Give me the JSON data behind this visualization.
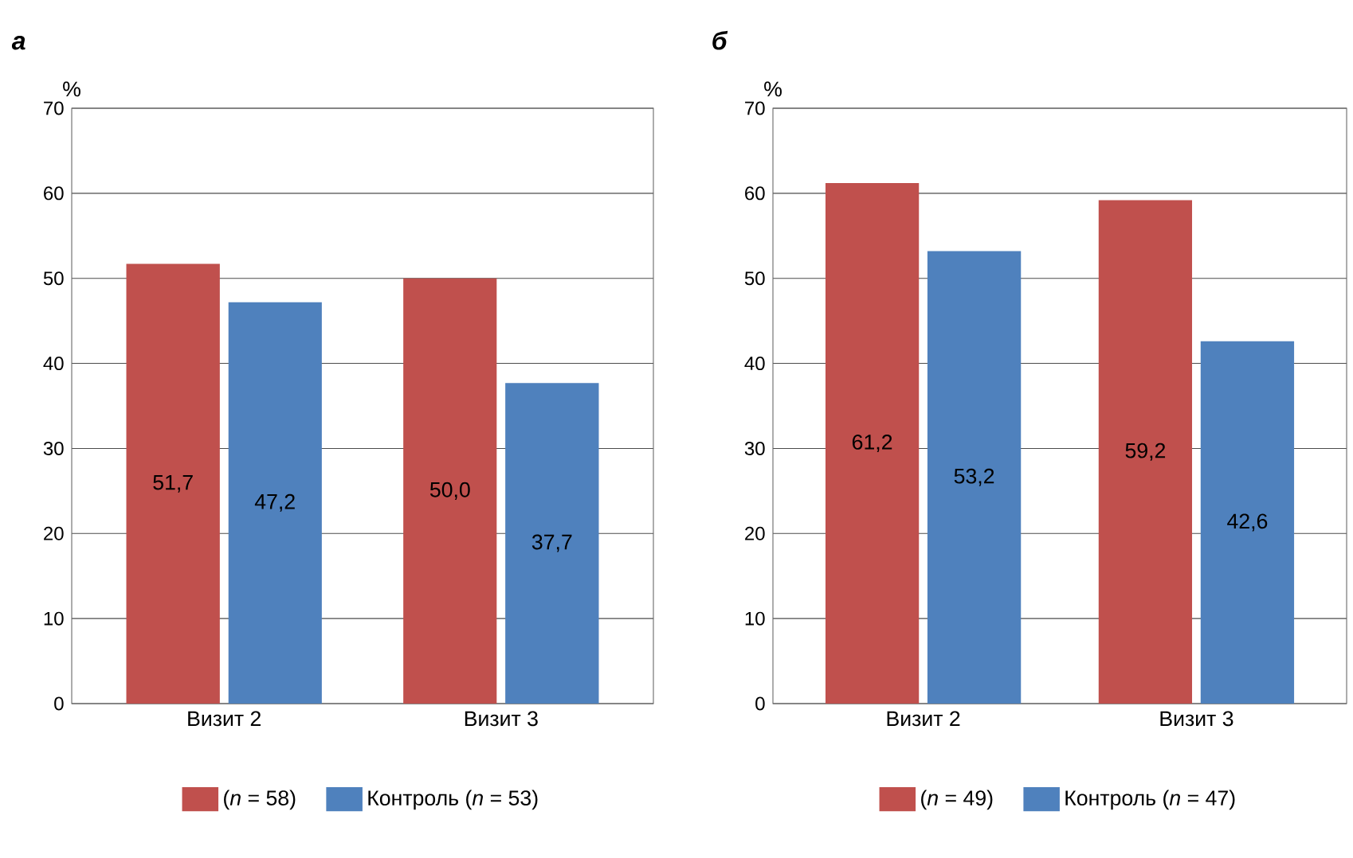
{
  "chart_data": [
    {
      "type": "bar",
      "title": "а",
      "ylabel": "%",
      "categories": [
        "Визит 2",
        "Визит 3"
      ],
      "series": [
        {
          "name": "(*n* = 58)",
          "color": "#c0504d",
          "values": [
            51.7,
            50.0
          ],
          "value_labels": [
            "51,7",
            "50,0"
          ]
        },
        {
          "name": "Контроль (*n* = 53)",
          "color": "#4f81bd",
          "values": [
            47.2,
            37.7
          ],
          "value_labels": [
            "47,2",
            "37,7"
          ]
        }
      ],
      "ylim": [
        0,
        70
      ],
      "yticks": [
        0,
        10,
        20,
        30,
        40,
        50,
        60,
        70
      ],
      "grid": "y",
      "legend": "bottom"
    },
    {
      "type": "bar",
      "title": "б",
      "ylabel": "%",
      "categories": [
        "Визит 2",
        "Визит 3"
      ],
      "series": [
        {
          "name": "(*n* = 49)",
          "color": "#c0504d",
          "values": [
            61.2,
            59.2
          ],
          "value_labels": [
            "61,2",
            "59,2"
          ]
        },
        {
          "name": "Контроль (*n* = 47)",
          "color": "#4f81bd",
          "values": [
            53.2,
            42.6
          ],
          "value_labels": [
            "53,2",
            "42,6"
          ]
        }
      ],
      "ylim": [
        0,
        70
      ],
      "yticks": [
        0,
        10,
        20,
        30,
        40,
        50,
        60,
        70
      ],
      "grid": "y",
      "legend": "bottom"
    }
  ]
}
